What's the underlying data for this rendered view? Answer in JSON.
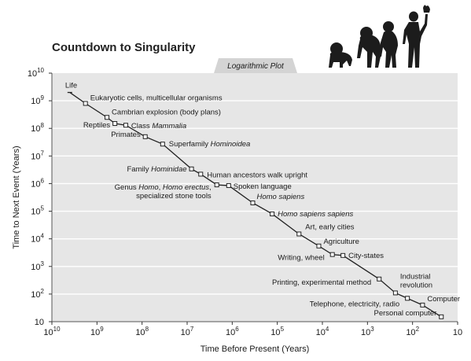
{
  "chart_data": {
    "type": "scatter",
    "title": "Countdown to Singularity",
    "subtitle": "Logarithmic Plot",
    "xlabel": "Time Before Present (Years)",
    "ylabel": "Time to Next Event (Years)",
    "x_scale": "log",
    "y_scale": "log",
    "x_reversed": true,
    "xlim": [
      10000000000,
      10
    ],
    "ylim": [
      10,
      10000000000
    ],
    "x_ticks": [
      {
        "value": 10000000000,
        "base": "10",
        "exp": "10"
      },
      {
        "value": 1000000000,
        "base": "10",
        "exp": "9"
      },
      {
        "value": 100000000,
        "base": "10",
        "exp": "8"
      },
      {
        "value": 10000000,
        "base": "10",
        "exp": "7"
      },
      {
        "value": 1000000,
        "base": "10",
        "exp": "6"
      },
      {
        "value": 100000,
        "base": "10",
        "exp": "5"
      },
      {
        "value": 10000,
        "base": "10",
        "exp": "4"
      },
      {
        "value": 1000,
        "base": "10",
        "exp": "3"
      },
      {
        "value": 100,
        "base": "10",
        "exp": "2"
      },
      {
        "value": 10,
        "base": "10",
        "exp": ""
      }
    ],
    "y_ticks": [
      {
        "value": 10000000000,
        "base": "10",
        "exp": "10"
      },
      {
        "value": 1000000000,
        "base": "10",
        "exp": "9"
      },
      {
        "value": 100000000,
        "base": "10",
        "exp": "8"
      },
      {
        "value": 10000000,
        "base": "10",
        "exp": "7"
      },
      {
        "value": 1000000,
        "base": "10",
        "exp": "6"
      },
      {
        "value": 100000,
        "base": "10",
        "exp": "5"
      },
      {
        "value": 10000,
        "base": "10",
        "exp": "4"
      },
      {
        "value": 1000,
        "base": "10",
        "exp": "3"
      },
      {
        "value": 100,
        "base": "10",
        "exp": "2"
      },
      {
        "value": 10,
        "base": "10",
        "exp": ""
      }
    ],
    "grid": true,
    "points": [
      {
        "label": "Life",
        "x": 4000000000,
        "y": 2000000000,
        "marker": "line"
      },
      {
        "label": "Eukaryotic cells, multicellular organisms",
        "x": 1800000000,
        "y": 800000000
      },
      {
        "label": "Cambrian explosion (body plans)",
        "x": 600000000,
        "y": 250000000
      },
      {
        "label": "Reptiles",
        "x": 400000000,
        "y": 150000000
      },
      {
        "label": "Class Mammalia",
        "x": 230000000,
        "y": 130000000,
        "label_prefix": "Class ",
        "label_italic": "Mammalia"
      },
      {
        "label": "Primates",
        "x": 85000000,
        "y": 50000000
      },
      {
        "label": "Superfamily Hominoidea",
        "x": 35000000,
        "y": 27000000,
        "label_prefix": "Superfamily ",
        "label_italic": "Hominoidea"
      },
      {
        "label": "Family Hominidae",
        "x": 8000000,
        "y": 3400000,
        "label_prefix": "Family ",
        "label_italic": "Hominidae"
      },
      {
        "label": "Human ancestors walk upright",
        "x": 5000000,
        "y": 2200000
      },
      {
        "label": "Genus Homo, Homo erectus, specialized stone tools",
        "x": 2200000,
        "y": 900000,
        "label_lines": [
          "Genus Homo, Homo erectus,",
          "specialized stone tools"
        ]
      },
      {
        "label": "Spoken language",
        "x": 1200000,
        "y": 850000
      },
      {
        "label": "Homo sapiens",
        "x": 350000,
        "y": 200000,
        "label_italic": "Homo sapiens"
      },
      {
        "label": "Homo sapiens sapiens",
        "x": 130000,
        "y": 80000,
        "label_italic": "Homo sapiens sapiens"
      },
      {
        "label": "Art, early cities",
        "x": 33000,
        "y": 15000
      },
      {
        "label": "Agriculture",
        "x": 12000,
        "y": 5500
      },
      {
        "label": "Writing, wheel",
        "x": 6000,
        "y": 2700
      },
      {
        "label": "City-states",
        "x": 3500,
        "y": 2500
      },
      {
        "label": "Printing, experimental method",
        "x": 550,
        "y": 350
      },
      {
        "label": "Industrial revolution",
        "x": 240,
        "y": 110,
        "label_lines": [
          "Industrial",
          "revolution"
        ]
      },
      {
        "label": "Telephone, electricity, radio",
        "x": 130,
        "y": 70
      },
      {
        "label": "Computer",
        "x": 60,
        "y": 40
      },
      {
        "label": "Personal computer",
        "x": 23,
        "y": 15
      }
    ],
    "colors": {
      "plot_bg": "#e6e6e6",
      "grid": "#ffffff",
      "line": "#222222",
      "marker_fill": "#ffffff",
      "text": "#1a1a1a",
      "tab_bg": "#d4d4d4"
    }
  }
}
